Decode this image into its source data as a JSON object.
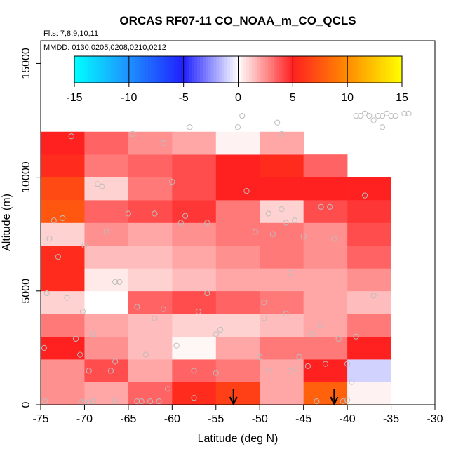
{
  "chart_data": {
    "type": "heatmap",
    "title": "ORCAS RF07-11 CO_NOAA_m_CO_QCLS",
    "note_flights": "Flts: 7,8,9,10,11",
    "note_dates": "MMDD: 0130,0205,0208,0210,0212",
    "xlabel": "Latitude (deg N)",
    "ylabel": "Altitude (m)",
    "xlim": [
      -75,
      -30
    ],
    "ylim": [
      0,
      16000
    ],
    "xticks": [
      -75,
      -70,
      -65,
      -60,
      -55,
      -50,
      -45,
      -40,
      -35,
      -30
    ],
    "xtick_labels": [
      "-75",
      "-70",
      "-65",
      "-60",
      "-55",
      "-50",
      "-45",
      "-40",
      "-35",
      "-30"
    ],
    "yticks": [
      0,
      5000,
      10000,
      15000
    ],
    "ytick_labels": [
      "0",
      "5000",
      "10000",
      "15000"
    ],
    "colorbar": {
      "min": -15,
      "max": 15,
      "ticks": [
        -15,
        -10,
        -5,
        0,
        5,
        10,
        15
      ],
      "tick_labels": [
        "-15",
        "-10",
        "-5",
        "0",
        "5",
        "10",
        "15"
      ],
      "stops": [
        {
          "v": -15,
          "c": "#00ffff"
        },
        {
          "v": -10,
          "c": "#1e90ff"
        },
        {
          "v": -5,
          "c": "#2020ff"
        },
        {
          "v": 0,
          "c": "#ffffff"
        },
        {
          "v": 5,
          "c": "#ff2020"
        },
        {
          "v": 10,
          "c": "#ff8c00"
        },
        {
          "v": 15,
          "c": "#ffff00"
        }
      ]
    },
    "bin_lat_width": 5,
    "bin_alt_height": 1000,
    "cells": [
      {
        "lat": -75,
        "alt": 0,
        "v": 2.5
      },
      {
        "lat": -70,
        "alt": 0,
        "v": 2.0
      },
      {
        "lat": -65,
        "alt": 0,
        "v": 3.5
      },
      {
        "lat": -60,
        "alt": 0,
        "v": 5.5
      },
      {
        "lat": -55,
        "alt": 0,
        "v": 6.5
      },
      {
        "lat": -50,
        "alt": 0,
        "v": 2.0
      },
      {
        "lat": -45,
        "alt": 0,
        "v": 8.0
      },
      {
        "lat": -40,
        "alt": 0,
        "v": 0.3
      },
      {
        "lat": -75,
        "alt": 1000,
        "v": 2.5
      },
      {
        "lat": -70,
        "alt": 1000,
        "v": 4.0
      },
      {
        "lat": -65,
        "alt": 1000,
        "v": 2.0
      },
      {
        "lat": -60,
        "alt": 1000,
        "v": 3.5
      },
      {
        "lat": -55,
        "alt": 1000,
        "v": 3.0
      },
      {
        "lat": -50,
        "alt": 1000,
        "v": 2.0
      },
      {
        "lat": -45,
        "alt": 1000,
        "v": 5.0
      },
      {
        "lat": -40,
        "alt": 1000,
        "v": -1.0
      },
      {
        "lat": -75,
        "alt": 2000,
        "v": 5.0
      },
      {
        "lat": -70,
        "alt": 2000,
        "v": 2.5
      },
      {
        "lat": -65,
        "alt": 2000,
        "v": 1.5
      },
      {
        "lat": -60,
        "alt": 2000,
        "v": 0.2
      },
      {
        "lat": -55,
        "alt": 2000,
        "v": 2.0
      },
      {
        "lat": -50,
        "alt": 2000,
        "v": 3.0
      },
      {
        "lat": -45,
        "alt": 2000,
        "v": 3.0
      },
      {
        "lat": -40,
        "alt": 2000,
        "v": 5.0
      },
      {
        "lat": -75,
        "alt": 3000,
        "v": 3.0
      },
      {
        "lat": -70,
        "alt": 3000,
        "v": 2.0
      },
      {
        "lat": -65,
        "alt": 3000,
        "v": 1.5
      },
      {
        "lat": -60,
        "alt": 3000,
        "v": 1.0
      },
      {
        "lat": -55,
        "alt": 3000,
        "v": 1.0
      },
      {
        "lat": -50,
        "alt": 3000,
        "v": 1.5
      },
      {
        "lat": -45,
        "alt": 3000,
        "v": 2.0
      },
      {
        "lat": -40,
        "alt": 3000,
        "v": 3.0
      },
      {
        "lat": -75,
        "alt": 4000,
        "v": 1.0
      },
      {
        "lat": -70,
        "alt": 4000,
        "v": 0.0
      },
      {
        "lat": -65,
        "alt": 4000,
        "v": 3.5
      },
      {
        "lat": -60,
        "alt": 4000,
        "v": 4.0
      },
      {
        "lat": -55,
        "alt": 4000,
        "v": 3.5
      },
      {
        "lat": -50,
        "alt": 4000,
        "v": 3.0
      },
      {
        "lat": -45,
        "alt": 4000,
        "v": 2.0
      },
      {
        "lat": -40,
        "alt": 4000,
        "v": 1.5
      },
      {
        "lat": -75,
        "alt": 5000,
        "v": 5.5
      },
      {
        "lat": -70,
        "alt": 5000,
        "v": 0.5
      },
      {
        "lat": -65,
        "alt": 5000,
        "v": 1.0
      },
      {
        "lat": -60,
        "alt": 5000,
        "v": 1.5
      },
      {
        "lat": -55,
        "alt": 5000,
        "v": 2.0
      },
      {
        "lat": -50,
        "alt": 5000,
        "v": 2.0
      },
      {
        "lat": -45,
        "alt": 5000,
        "v": 2.0
      },
      {
        "lat": -40,
        "alt": 5000,
        "v": 2.5
      },
      {
        "lat": -75,
        "alt": 6000,
        "v": 5.5
      },
      {
        "lat": -70,
        "alt": 6000,
        "v": 1.5
      },
      {
        "lat": -65,
        "alt": 6000,
        "v": 1.5
      },
      {
        "lat": -60,
        "alt": 6000,
        "v": 2.0
      },
      {
        "lat": -55,
        "alt": 6000,
        "v": 2.5
      },
      {
        "lat": -50,
        "alt": 6000,
        "v": 3.0
      },
      {
        "lat": -45,
        "alt": 6000,
        "v": 2.5
      },
      {
        "lat": -40,
        "alt": 6000,
        "v": 3.5
      },
      {
        "lat": -75,
        "alt": 7000,
        "v": 1.0
      },
      {
        "lat": -70,
        "alt": 7000,
        "v": 2.5
      },
      {
        "lat": -65,
        "alt": 7000,
        "v": 2.0
      },
      {
        "lat": -60,
        "alt": 7000,
        "v": 2.5
      },
      {
        "lat": -55,
        "alt": 7000,
        "v": 3.0
      },
      {
        "lat": -50,
        "alt": 7000,
        "v": 3.0
      },
      {
        "lat": -45,
        "alt": 7000,
        "v": 2.5
      },
      {
        "lat": -40,
        "alt": 7000,
        "v": 4.0
      },
      {
        "lat": -75,
        "alt": 8000,
        "v": 7.5
      },
      {
        "lat": -70,
        "alt": 8000,
        "v": 3.5
      },
      {
        "lat": -65,
        "alt": 8000,
        "v": 4.0
      },
      {
        "lat": -60,
        "alt": 8000,
        "v": 4.5
      },
      {
        "lat": -55,
        "alt": 8000,
        "v": 3.0
      },
      {
        "lat": -50,
        "alt": 8000,
        "v": 1.0
      },
      {
        "lat": -45,
        "alt": 8000,
        "v": 4.0
      },
      {
        "lat": -40,
        "alt": 8000,
        "v": 4.5
      },
      {
        "lat": -75,
        "alt": 9000,
        "v": 7.0
      },
      {
        "lat": -70,
        "alt": 9000,
        "v": 1.0
      },
      {
        "lat": -65,
        "alt": 9000,
        "v": 3.0
      },
      {
        "lat": -60,
        "alt": 9000,
        "v": 4.0
      },
      {
        "lat": -55,
        "alt": 9000,
        "v": 5.0
      },
      {
        "lat": -50,
        "alt": 9000,
        "v": 5.0
      },
      {
        "lat": -45,
        "alt": 9000,
        "v": 5.0
      },
      {
        "lat": -40,
        "alt": 9000,
        "v": 5.0
      },
      {
        "lat": -75,
        "alt": 10000,
        "v": 5.5
      },
      {
        "lat": -70,
        "alt": 10000,
        "v": 3.0
      },
      {
        "lat": -65,
        "alt": 10000,
        "v": 3.5
      },
      {
        "lat": -60,
        "alt": 10000,
        "v": 4.0
      },
      {
        "lat": -55,
        "alt": 10000,
        "v": 5.0
      },
      {
        "lat": -50,
        "alt": 10000,
        "v": 5.5
      },
      {
        "lat": -45,
        "alt": 10000,
        "v": 3.5
      },
      {
        "lat": -75,
        "alt": 11000,
        "v": 5.0
      },
      {
        "lat": -70,
        "alt": 11000,
        "v": 3.5
      },
      {
        "lat": -65,
        "alt": 11000,
        "v": 2.5
      },
      {
        "lat": -60,
        "alt": 11000,
        "v": 2.0
      },
      {
        "lat": -55,
        "alt": 11000,
        "v": 0.3
      },
      {
        "lat": -50,
        "alt": 11000,
        "v": 2.0
      }
    ],
    "points": [
      [
        -74.5,
        150
      ],
      [
        -74.6,
        2500
      ],
      [
        -74.3,
        4900
      ],
      [
        -74.0,
        7300
      ],
      [
        -73.5,
        8100
      ],
      [
        -73.0,
        6500
      ],
      [
        -72.5,
        8200
      ],
      [
        -72.0,
        4700
      ],
      [
        -71.5,
        11800
      ],
      [
        -71.0,
        2900
      ],
      [
        -70.5,
        2200
      ],
      [
        -70.2,
        4100
      ],
      [
        -70.0,
        7000
      ],
      [
        -69.5,
        1500
      ],
      [
        -69.0,
        150
      ],
      [
        -69.5,
        100
      ],
      [
        -70.0,
        100
      ],
      [
        -70.4,
        120
      ],
      [
        -69.0,
        3100
      ],
      [
        -68.5,
        9700
      ],
      [
        -68.0,
        9600
      ],
      [
        -67.5,
        7600
      ],
      [
        -67.0,
        1500
      ],
      [
        -66.5,
        1900
      ],
      [
        -66.5,
        5400
      ],
      [
        -66.0,
        5400
      ],
      [
        -66.5,
        150
      ],
      [
        -65.0,
        8400
      ],
      [
        -64.5,
        11900
      ],
      [
        -64.0,
        4300
      ],
      [
        -64.0,
        150
      ],
      [
        -63.5,
        150
      ],
      [
        -63.0,
        2200
      ],
      [
        -62.5,
        150
      ],
      [
        -62.0,
        3800
      ],
      [
        -61.5,
        150
      ],
      [
        -62.0,
        8400
      ],
      [
        -61.0,
        4200
      ],
      [
        -61.0,
        11500
      ],
      [
        -60.5,
        700
      ],
      [
        -60.0,
        9800
      ],
      [
        -59.5,
        2600
      ],
      [
        -59.0,
        8000
      ],
      [
        -58.5,
        8300
      ],
      [
        -58.0,
        12200
      ],
      [
        -57.5,
        1500
      ],
      [
        -57.5,
        300
      ],
      [
        -57.0,
        4100
      ],
      [
        -56.0,
        4900
      ],
      [
        -56.0,
        8000
      ],
      [
        -55.0,
        1400
      ],
      [
        -55.0,
        3100
      ],
      [
        -54.5,
        3300
      ],
      [
        -52.5,
        12200
      ],
      [
        -52.0,
        12700
      ],
      [
        -51.5,
        9400
      ],
      [
        -50.5,
        7600
      ],
      [
        -50.0,
        2100
      ],
      [
        -49.5,
        4500
      ],
      [
        -49.5,
        3800
      ],
      [
        -49.0,
        1500
      ],
      [
        -49.0,
        8400
      ],
      [
        -48.5,
        7500
      ],
      [
        -48.0,
        12400
      ],
      [
        -47.5,
        11900
      ],
      [
        -47.5,
        8600
      ],
      [
        -47.0,
        4000
      ],
      [
        -47.0,
        8000
      ],
      [
        -46.5,
        1500
      ],
      [
        -46.5,
        5800
      ],
      [
        -46.0,
        1600
      ],
      [
        -46.0,
        8100
      ],
      [
        -45.5,
        2100
      ],
      [
        -45.0,
        7400
      ],
      [
        -44.5,
        1700
      ],
      [
        -44.0,
        3100
      ],
      [
        -43.5,
        150
      ],
      [
        -43.0,
        3500
      ],
      [
        -43.0,
        8700
      ],
      [
        -42.5,
        1800
      ],
      [
        -42.0,
        8700
      ],
      [
        -41.5,
        7300
      ],
      [
        -41.0,
        2900
      ],
      [
        -40.5,
        150
      ],
      [
        -40.0,
        1800
      ],
      [
        -39.5,
        1000
      ],
      [
        -39.0,
        3000
      ],
      [
        -39.0,
        12700
      ],
      [
        -38.5,
        12700
      ],
      [
        -38.0,
        12800
      ],
      [
        -37.5,
        12700
      ],
      [
        -37.0,
        12500
      ],
      [
        -36.5,
        12700
      ],
      [
        -36.0,
        12700
      ],
      [
        -35.5,
        12800
      ],
      [
        -35.0,
        12700
      ],
      [
        -34.5,
        12700
      ],
      [
        -33.5,
        12800
      ],
      [
        -33.0,
        12800
      ],
      [
        -36.0,
        12200
      ],
      [
        -38.0,
        9200
      ],
      [
        -37.0,
        4800
      ],
      [
        -40.0,
        200
      ]
    ],
    "arrows": [
      -53,
      -41.5
    ]
  }
}
